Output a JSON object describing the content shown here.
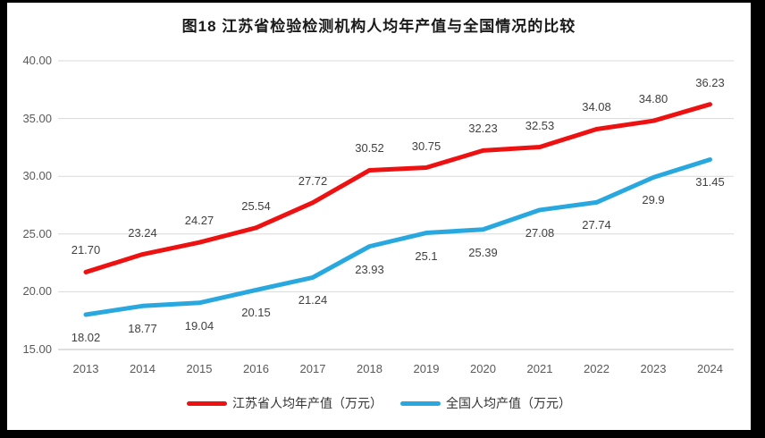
{
  "title": "图18  江苏省检验检测机构人均年产值与全国情况的比较",
  "colors": {
    "frame": "#000000",
    "background": "#ffffff",
    "grid": "#d9d9d9",
    "axis_line": "#bfbfbf",
    "tick_text": "#595959",
    "data_label_text": "#404040",
    "legend_text": "#333333",
    "jiangsu_red": "#ee1111",
    "national_blue": "#29a8e0"
  },
  "chart_data": {
    "type": "line",
    "title": "图18  江苏省检验检测机构人均年产值与全国情况的比较",
    "categories": [
      "2013",
      "2014",
      "2015",
      "2016",
      "2017",
      "2018",
      "2019",
      "2020",
      "2021",
      "2022",
      "2023",
      "2024"
    ],
    "series": [
      {
        "name": "江苏省人均年产值（万元）",
        "color": "#ee1111",
        "label_side": "above",
        "values": [
          21.7,
          23.24,
          24.27,
          25.54,
          27.72,
          30.52,
          30.75,
          32.23,
          32.53,
          34.08,
          34.8,
          36.23
        ],
        "labels": [
          "21.70",
          "23.24",
          "24.27",
          "25.54",
          "27.72",
          "30.52",
          "30.75",
          "32.23",
          "32.53",
          "34.08",
          "34.80",
          "36.23"
        ]
      },
      {
        "name": "全国人均产值（万元）",
        "color": "#29a8e0",
        "label_side": "below",
        "values": [
          18.02,
          18.77,
          19.04,
          20.15,
          21.24,
          23.93,
          25.1,
          25.39,
          27.08,
          27.74,
          29.9,
          31.45
        ],
        "labels": [
          "18.02",
          "18.77",
          "19.04",
          "20.15",
          "21.24",
          "23.93",
          "25.1",
          "25.39",
          "27.08",
          "27.74",
          "29.9",
          "31.45"
        ]
      }
    ],
    "ylim": [
      15,
      40
    ],
    "yticks": [
      {
        "value": 40,
        "label": "40.00"
      },
      {
        "value": 35,
        "label": "35.00"
      },
      {
        "value": 30,
        "label": "30.00"
      },
      {
        "value": 25,
        "label": "25.00"
      },
      {
        "value": 20,
        "label": "20.00"
      },
      {
        "value": 15,
        "label": "15.00"
      }
    ],
    "grid": true,
    "legend_position": "bottom"
  }
}
